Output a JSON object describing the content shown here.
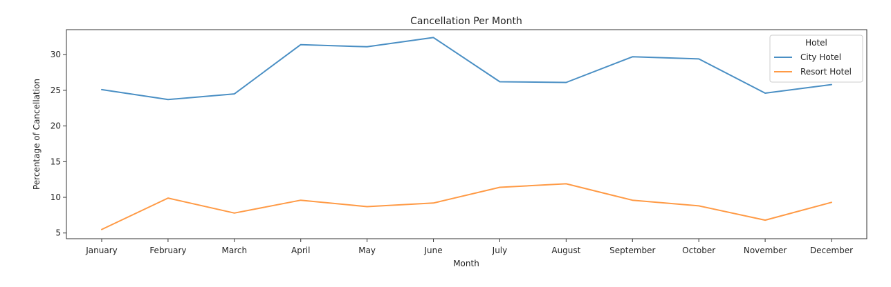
{
  "chart_data": {
    "type": "line",
    "title": "Cancellation Per Month",
    "xlabel": "Month",
    "ylabel": "Percentage of Cancellation",
    "categories": [
      "January",
      "February",
      "March",
      "April",
      "May",
      "June",
      "July",
      "August",
      "September",
      "October",
      "November",
      "December"
    ],
    "ylim": [
      4.2,
      33.5
    ],
    "yticks": [
      5,
      10,
      15,
      20,
      25,
      30
    ],
    "grid": false,
    "legend": {
      "title": "Hotel",
      "placement": "top-right"
    },
    "series": [
      {
        "name": "City Hotel",
        "color": "#4a8fc4",
        "values": [
          25.1,
          23.7,
          24.5,
          31.4,
          31.1,
          32.4,
          26.2,
          26.1,
          29.7,
          29.4,
          24.6,
          25.8
        ]
      },
      {
        "name": "Resort Hotel",
        "color": "#ff9a45",
        "values": [
          5.5,
          9.9,
          7.8,
          9.6,
          8.7,
          9.2,
          11.4,
          11.9,
          9.6,
          8.8,
          6.8,
          9.3
        ]
      }
    ]
  }
}
